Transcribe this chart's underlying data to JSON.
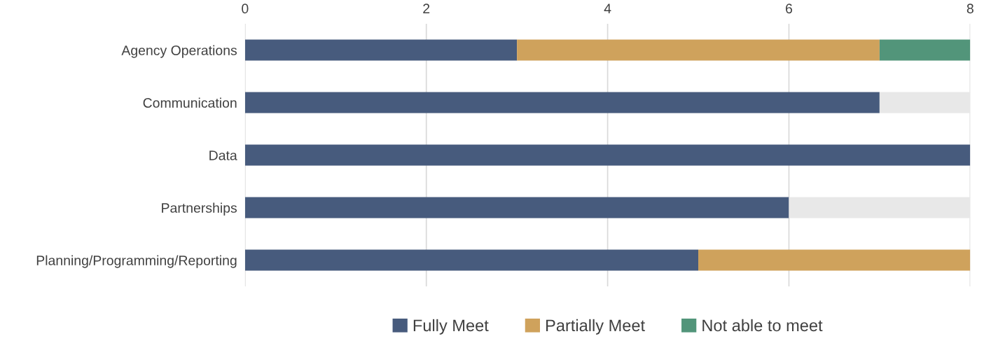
{
  "chart_data": {
    "type": "bar",
    "orientation": "horizontal",
    "stacked": true,
    "categories": [
      "Agency Operations",
      "Communication",
      "Data",
      "Partnerships",
      "Planning/Programming/Reporting"
    ],
    "series": [
      {
        "name": "Fully Meet",
        "color": "#475b7d",
        "values": [
          3,
          7,
          8,
          6,
          5
        ]
      },
      {
        "name": "Partially Meet",
        "color": "#cfa25c",
        "values": [
          4,
          null,
          null,
          null,
          3
        ]
      },
      {
        "name": "Not able to meet",
        "color": "#52957a",
        "values": [
          1,
          null,
          null,
          null,
          null
        ]
      },
      {
        "color": "#e8e8e8",
        "values": [
          null,
          1,
          null,
          2,
          null
        ]
      }
    ],
    "xlim": [
      0,
      8
    ],
    "xticks": [
      0,
      2,
      4,
      6,
      8
    ],
    "grid": "x",
    "legend": "bottom"
  }
}
